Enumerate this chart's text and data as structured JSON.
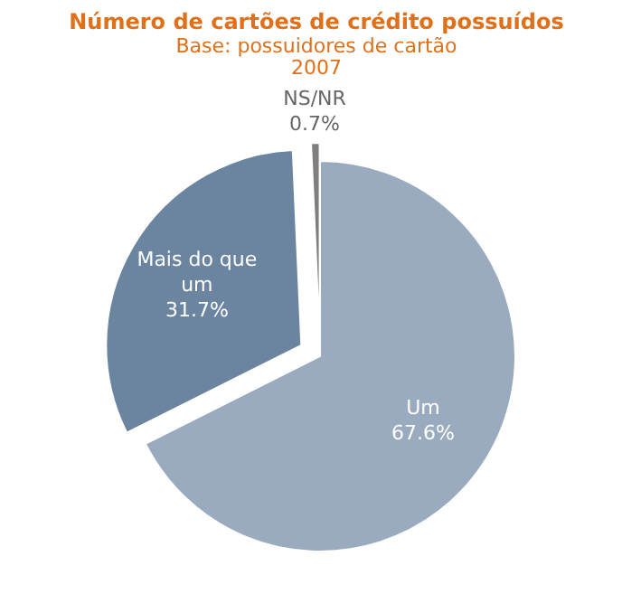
{
  "chart_data": {
    "type": "pie",
    "title": "Número de cartões de crédito possuídos",
    "subtitle": "Base: possuidores de cartão\n2007",
    "categories": [
      "Um",
      "Mais do que um",
      "NS/NR"
    ],
    "values": [
      67.6,
      31.7,
      0.7
    ],
    "value_labels": [
      "67.6%",
      "31.7%",
      "0.7%"
    ],
    "colors": [
      "#9aabc0",
      "#6b84a0",
      "#7f7f7f"
    ]
  }
}
